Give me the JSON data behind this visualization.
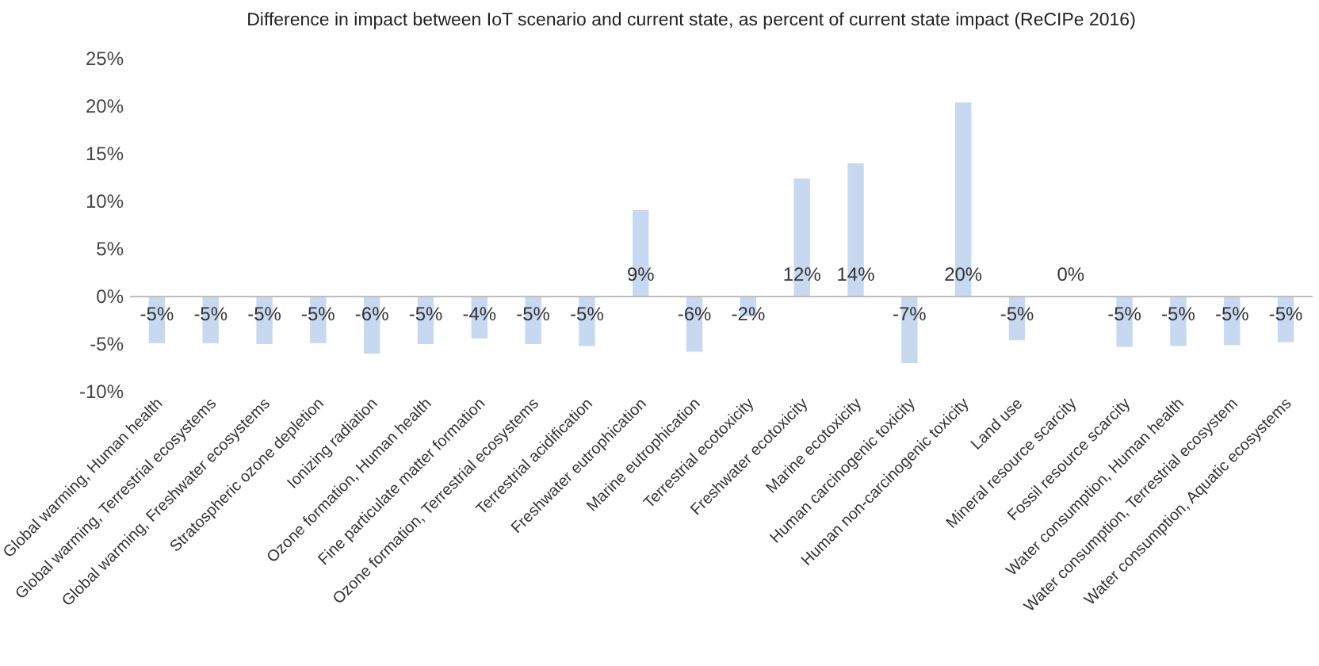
{
  "chart_data": {
    "type": "bar",
    "title": "Difference in impact between IoT scenario and current state, as percent of current state impact (ReCIPe 2016)",
    "categories": [
      "Global warming, Human health",
      "Global warming, Terrestrial ecosystems",
      "Global warming, Freshwater ecosystems",
      "Stratospheric ozone depletion",
      "Ionizing radiation",
      "Ozone formation, Human health",
      "Fine particulate matter formation",
      "Ozone formation, Terrestrial ecosystems",
      "Terrestrial acidification",
      "Freshwater eutrophication",
      "Marine eutrophication",
      "Terrestrial ecotoxicity",
      "Freshwater ecotoxicity",
      "Marine ecotoxicity",
      "Human carcinogenic toxicity",
      "Human non-carcinogenic toxicity",
      "Land use",
      "Mineral resource scarcity",
      "Fossil resource scarcity",
      "Water consumption, Human health",
      "Water consumption, Terrestrial ecosystem",
      "Water consumption, Aquatic ecosystems"
    ],
    "values": [
      -4.9,
      -4.9,
      -5.0,
      -4.9,
      -6.0,
      -5.0,
      -4.4,
      -5.0,
      -5.2,
      9.1,
      -5.8,
      -2.1,
      12.4,
      14.0,
      -7.0,
      20.4,
      -4.6,
      0,
      -5.3,
      -5.2,
      -5.1,
      -4.8
    ],
    "value_labels": [
      "-5%",
      "-5%",
      "-5%",
      "-5%",
      "-6%",
      "-5%",
      "-4%",
      "-5%",
      "-5%",
      "9%",
      "-6%",
      "-2%",
      "12%",
      "14%",
      "-7%",
      "20%",
      "-5%",
      "0%",
      "-5%",
      "-5%",
      "-5%",
      "-5%"
    ],
    "color": "#c6d9f0",
    "ylim": [
      -10,
      25
    ],
    "yticks": [
      {
        "value": -10,
        "label": "-10%"
      },
      {
        "value": -5,
        "label": "-5%"
      },
      {
        "value": 0,
        "label": "0%"
      },
      {
        "value": 5,
        "label": "5%"
      },
      {
        "value": 10,
        "label": "10%"
      },
      {
        "value": 15,
        "label": "15%"
      },
      {
        "value": 20,
        "label": "20%"
      },
      {
        "value": 25,
        "label": "25%"
      }
    ],
    "legend": false
  }
}
